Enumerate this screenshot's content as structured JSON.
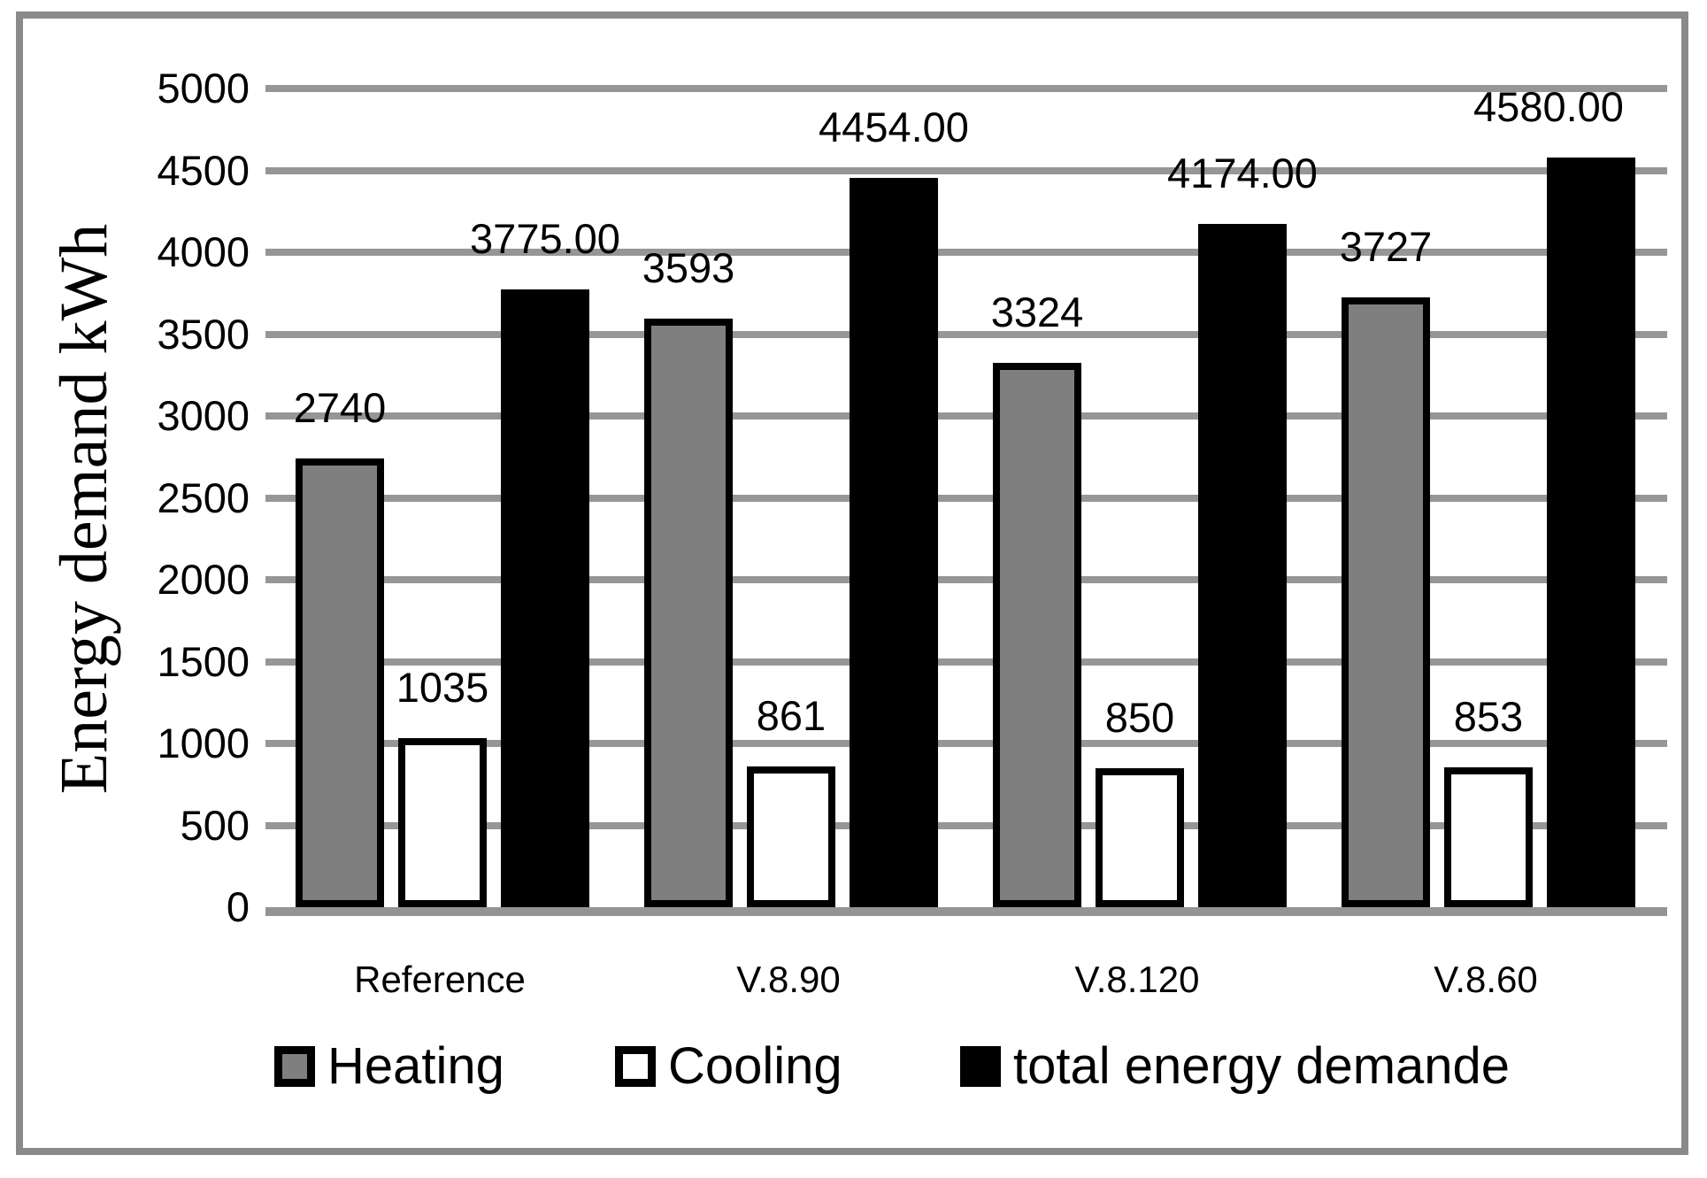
{
  "colors": {
    "frame_border": "#8a8a8a",
    "gridline": "#969696",
    "axis_line": "#949494",
    "background": "#ffffff",
    "heating_fill": "#7f7f7f",
    "cooling_fill": "#ffffff",
    "total_fill": "#000000",
    "bar_border": "#000000",
    "text": "#000000"
  },
  "y_axis": {
    "title": "Energy demand kWh",
    "tick_labels": [
      "0",
      "500",
      "1000",
      "1500",
      "2000",
      "2500",
      "3000",
      "3500",
      "4000",
      "4500",
      "5000"
    ],
    "tick_values": [
      0,
      500,
      1000,
      1500,
      2000,
      2500,
      3000,
      3500,
      4000,
      4500,
      5000
    ]
  },
  "chart_data": {
    "type": "bar",
    "title": "",
    "xlabel": "",
    "ylabel": "Energy demand kWh",
    "ylim": [
      0,
      5000
    ],
    "grid": true,
    "legend_position": "bottom",
    "categories": [
      "Reference",
      "V.8.90",
      "V.8.120",
      "V.8.60"
    ],
    "series": [
      {
        "name": "Heating",
        "color": "#7f7f7f",
        "border": "#000000",
        "values": [
          2740,
          3593,
          3324,
          3727
        ],
        "labels": [
          "2740",
          "3593",
          "3324",
          "3727"
        ]
      },
      {
        "name": "Cooling",
        "color": "#ffffff",
        "border": "#000000",
        "values": [
          1035,
          861,
          850,
          853
        ],
        "labels": [
          "1035",
          "861",
          "850",
          "853"
        ]
      },
      {
        "name": "total energy demande",
        "color": "#000000",
        "border": "#000000",
        "values": [
          3775,
          4454,
          4174,
          4580
        ],
        "labels": [
          "3775.00",
          "4454.00",
          "4174.00",
          "4580.00"
        ]
      }
    ]
  },
  "legend": {
    "items": [
      {
        "label": "Heating",
        "fill": "#7f7f7f",
        "bordered": true
      },
      {
        "label": "Cooling",
        "fill": "#ffffff",
        "bordered": true
      },
      {
        "label": "total energy demande",
        "fill": "#000000",
        "bordered": false
      }
    ]
  }
}
